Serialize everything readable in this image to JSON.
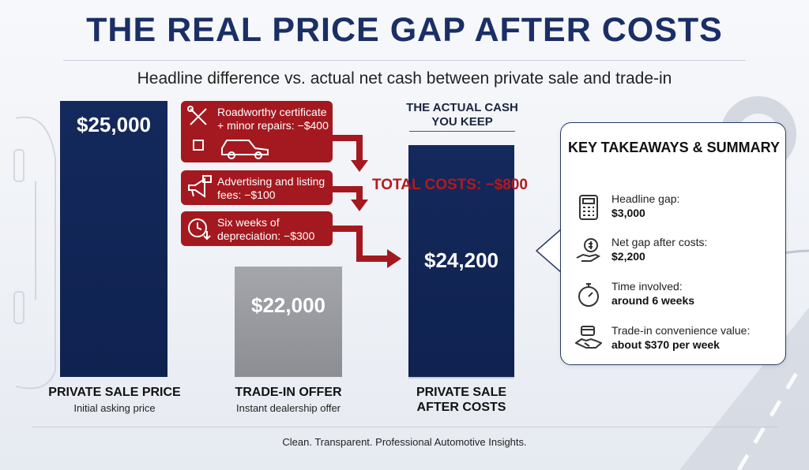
{
  "header": {
    "title": "THE REAL PRICE GAP AFTER COSTS",
    "subtitle": "Headline difference vs. actual net cash between private sale and trade-in"
  },
  "chart_data": {
    "type": "bar",
    "categories": [
      "PRIVATE SALE PRICE",
      "TRADE-IN OFFER",
      "PRIVATE SALE AFTER COSTS"
    ],
    "category_subtitles": [
      "Initial asking price",
      "Instant dealership offer",
      ""
    ],
    "values": [
      25000,
      22000,
      24200
    ],
    "value_labels": [
      "$25,000",
      "$22,000",
      "$24,200"
    ],
    "ylim": [
      0,
      25000
    ],
    "grid": false,
    "annotations": {
      "keep_label": "THE ACTUAL CASH YOU KEEP",
      "total_costs": "TOTAL COSTS: −$800",
      "costs": [
        {
          "label": "Roadworthy certificate + minor repairs: −$400",
          "value": -400,
          "icon": "tools-car-icon"
        },
        {
          "label": "Advertising and listing fees: −$100",
          "value": -100,
          "icon": "megaphone-icon"
        },
        {
          "label": "Six weeks of depreciation: −$300",
          "value": -300,
          "icon": "clock-down-icon"
        }
      ]
    },
    "colors": {
      "navy": "#14295c",
      "gray": "#8e9095",
      "red": "#a3191f"
    }
  },
  "takeaways": {
    "title": "KEY TAKEAWAYS & SUMMARY",
    "items": [
      {
        "label": "Headline gap:",
        "value": "$3,000",
        "icon": "calculator-icon"
      },
      {
        "label": "Net gap after costs:",
        "value": "$2,200",
        "icon": "money-hand-icon"
      },
      {
        "label": "Time involved:",
        "value": "around 6 weeks",
        "icon": "stopwatch-icon"
      },
      {
        "label": "Trade-in convenience value:",
        "value": "about $370 per week",
        "icon": "handshake-icon"
      }
    ]
  },
  "footer": {
    "text": "Clean. Transparent. Professional Automotive Insights."
  }
}
